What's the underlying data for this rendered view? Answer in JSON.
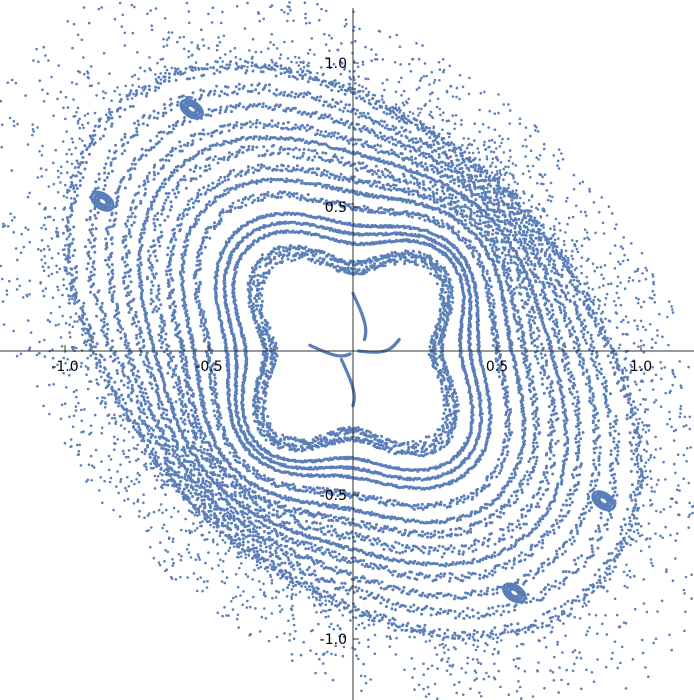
{
  "chart_data": {
    "type": "scatter",
    "title": "",
    "xlabel": "",
    "ylabel": "",
    "xlim": [
      -1.2,
      1.2
    ],
    "ylim": [
      -1.23,
      1.2
    ],
    "x_ticks": [
      {
        "value": -1.0,
        "label": "-1.0"
      },
      {
        "value": -0.5,
        "label": "-0.5"
      },
      {
        "value": 0.5,
        "label": "0.5"
      },
      {
        "value": 1.0,
        "label": "1.0"
      }
    ],
    "y_ticks": [
      {
        "value": 1.0,
        "label": "1.0"
      },
      {
        "value": 0.5,
        "label": "0.5"
      },
      {
        "value": -0.5,
        "label": "-0.5"
      },
      {
        "value": -1.0,
        "label": "-1.0"
      }
    ],
    "grid": false,
    "axes_origin": [
      0,
      0
    ],
    "point_color": "#5b7fb8",
    "rings": [
      {
        "radius": 0.34,
        "squareness": 0.55,
        "tilt": 0.02,
        "thickness": 0.015
      },
      {
        "radius": 0.37,
        "squareness": 0.5,
        "tilt": 0.03,
        "thickness": 0.01
      },
      {
        "radius": 0.43,
        "squareness": 0.38,
        "tilt": 0.05,
        "thickness": 0.004
      },
      {
        "radius": 0.46,
        "squareness": 0.33,
        "tilt": 0.06,
        "thickness": 0.004
      },
      {
        "radius": 0.49,
        "squareness": 0.3,
        "tilt": 0.07,
        "thickness": 0.004
      },
      {
        "radius": 0.55,
        "squareness": 0.26,
        "tilt": 0.09,
        "thickness": 0.012
      },
      {
        "radius": 0.6,
        "squareness": 0.23,
        "tilt": 0.1,
        "thickness": 0.006
      },
      {
        "radius": 0.64,
        "squareness": 0.2,
        "tilt": 0.11,
        "thickness": 0.012
      },
      {
        "radius": 0.69,
        "squareness": 0.18,
        "tilt": 0.13,
        "thickness": 0.02
      },
      {
        "radius": 0.73,
        "squareness": 0.16,
        "tilt": 0.14,
        "thickness": 0.006
      },
      {
        "radius": 0.77,
        "squareness": 0.15,
        "tilt": 0.15,
        "thickness": 0.014
      },
      {
        "radius": 0.82,
        "squareness": 0.13,
        "tilt": 0.17,
        "thickness": 0.012
      },
      {
        "radius": 0.87,
        "squareness": 0.12,
        "tilt": 0.19,
        "thickness": 0.018
      },
      {
        "radius": 0.93,
        "squareness": 0.11,
        "tilt": 0.21,
        "thickness": 0.02
      }
    ],
    "islands": [
      {
        "x": -0.56,
        "y": 0.84,
        "rx": 0.04,
        "ry": 0.024
      },
      {
        "x": 0.56,
        "y": -0.84,
        "rx": 0.04,
        "ry": 0.024
      },
      {
        "x": -0.87,
        "y": 0.52,
        "rx": 0.04,
        "ry": 0.024
      },
      {
        "x": 0.87,
        "y": -0.52,
        "rx": 0.04,
        "ry": 0.024
      }
    ],
    "inner_curves": [
      {
        "x1": -0.15,
        "y1": 0.02,
        "x2": -0.01,
        "y2": -0.01
      },
      {
        "x1": 0.02,
        "y1": 0.0,
        "x2": 0.16,
        "y2": 0.04
      },
      {
        "x1": 0.0,
        "y1": 0.2,
        "x2": 0.04,
        "y2": 0.04
      },
      {
        "x1": -0.04,
        "y1": -0.03,
        "x2": 0.0,
        "y2": -0.19
      }
    ]
  }
}
